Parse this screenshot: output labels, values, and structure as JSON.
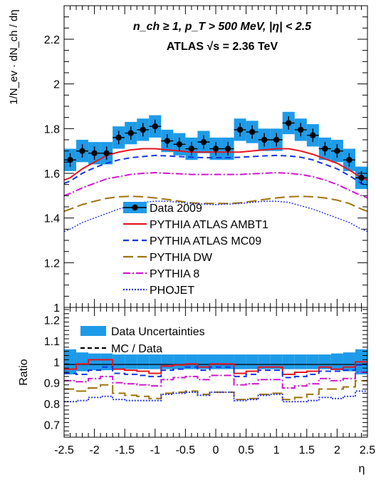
{
  "chart_data": [
    {
      "type": "line",
      "title_line1": "n_ch ≥ 1, p_T > 500 MeV, |η| < 2.5",
      "title_line2": "ATLAS √s = 2.36 TeV",
      "ylabel": "1/N_ev · dN_ch / dη",
      "xlim": [
        -2.5,
        2.5
      ],
      "ylim": [
        1.0,
        2.35
      ],
      "yticks": [
        1.0,
        1.2,
        1.4,
        1.6,
        1.8,
        2.0,
        2.2
      ],
      "yticklabels": [
        "1",
        "1.2",
        "1.4",
        "1.6",
        "1.8",
        "2",
        "2.2"
      ],
      "colors": {
        "data": "#000000",
        "band": "#1e9be8",
        "ambt1": "#e8141e",
        "mc09": "#1432e6",
        "dw": "#a0730a",
        "p8": "#d214d2",
        "phojet": "#2838e0"
      },
      "x": [
        -2.4,
        -2.2,
        -2.0,
        -1.8,
        -1.6,
        -1.4,
        -1.2,
        -1.0,
        -0.8,
        -0.6,
        -0.4,
        -0.2,
        0.0,
        0.2,
        0.4,
        0.6,
        0.8,
        1.0,
        1.2,
        1.4,
        1.6,
        1.8,
        2.0,
        2.2,
        2.4
      ],
      "series": [
        {
          "name": "Data 2009",
          "style": "points-band",
          "values": [
            1.66,
            1.7,
            1.69,
            1.69,
            1.76,
            1.78,
            1.795,
            1.81,
            1.745,
            1.73,
            1.71,
            1.74,
            1.71,
            1.71,
            1.795,
            1.785,
            1.75,
            1.75,
            1.825,
            1.795,
            1.77,
            1.71,
            1.7,
            1.66,
            1.58
          ],
          "band_halfwidth": [
            0.05,
            0.05,
            0.05,
            0.05,
            0.05,
            0.05,
            0.05,
            0.05,
            0.05,
            0.05,
            0.05,
            0.05,
            0.05,
            0.05,
            0.05,
            0.05,
            0.05,
            0.05,
            0.05,
            0.05,
            0.05,
            0.05,
            0.05,
            0.05,
            0.05
          ],
          "errors": [
            0.03,
            0.03,
            0.03,
            0.03,
            0.03,
            0.03,
            0.03,
            0.03,
            0.03,
            0.03,
            0.03,
            0.03,
            0.03,
            0.03,
            0.03,
            0.03,
            0.03,
            0.03,
            0.03,
            0.03,
            0.03,
            0.03,
            0.03,
            0.03,
            0.03
          ]
        },
        {
          "name": "PYTHIA ATLAS AMBT1",
          "color_key": "ambt1",
          "dash": "",
          "values": [
            1.58,
            1.62,
            1.65,
            1.68,
            1.695,
            1.705,
            1.71,
            1.71,
            1.705,
            1.7,
            1.695,
            1.695,
            1.695,
            1.695,
            1.695,
            1.7,
            1.705,
            1.71,
            1.71,
            1.7,
            1.685,
            1.665,
            1.645,
            1.615,
            1.58
          ]
        },
        {
          "name": "PYTHIA ATLAS MC09",
          "color_key": "mc09",
          "dash": "8,5",
          "values": [
            1.565,
            1.6,
            1.625,
            1.645,
            1.66,
            1.67,
            1.675,
            1.68,
            1.678,
            1.675,
            1.672,
            1.67,
            1.67,
            1.67,
            1.672,
            1.675,
            1.678,
            1.68,
            1.678,
            1.672,
            1.66,
            1.64,
            1.62,
            1.59,
            1.555
          ]
        },
        {
          "name": "PYTHIA DW",
          "color_key": "dw",
          "dash": "14,6",
          "values": [
            1.44,
            1.46,
            1.475,
            1.488,
            1.495,
            1.497,
            1.495,
            1.49,
            1.483,
            1.475,
            1.468,
            1.465,
            1.465,
            1.465,
            1.468,
            1.475,
            1.483,
            1.49,
            1.495,
            1.497,
            1.495,
            1.49,
            1.48,
            1.465,
            1.44
          ]
        },
        {
          "name": "PYTHIA 8",
          "color_key": "p8",
          "dash": "10,3,2,3",
          "values": [
            1.51,
            1.535,
            1.555,
            1.575,
            1.585,
            1.595,
            1.6,
            1.603,
            1.6,
            1.598,
            1.595,
            1.595,
            1.595,
            1.595,
            1.595,
            1.598,
            1.6,
            1.603,
            1.6,
            1.595,
            1.585,
            1.57,
            1.55,
            1.525,
            1.5
          ]
        },
        {
          "name": "PHOJET",
          "color_key": "phojet",
          "dash": "2,2",
          "values": [
            1.35,
            1.38,
            1.4,
            1.42,
            1.44,
            1.455,
            1.47,
            1.475,
            1.475,
            1.47,
            1.465,
            1.462,
            1.46,
            1.462,
            1.465,
            1.47,
            1.475,
            1.475,
            1.47,
            1.455,
            1.44,
            1.42,
            1.4,
            1.38,
            1.35
          ]
        }
      ],
      "legend": "center-left"
    },
    {
      "type": "line",
      "ylabel": "Ratio",
      "xlabel": "η",
      "xlim": [
        -2.5,
        2.5
      ],
      "ylim": [
        0.64,
        1.26
      ],
      "xticks": [
        -2.5,
        -2.0,
        -1.5,
        -1.0,
        -0.5,
        0.0,
        0.5,
        1.0,
        1.5,
        2.0,
        2.5
      ],
      "xticklabels": [
        "-2.5",
        "-2",
        "-1.5",
        "-1",
        "-0.5",
        "0",
        "0.5",
        "1",
        "1.5",
        "2",
        "2.5"
      ],
      "yticks": [
        0.7,
        0.8,
        0.9,
        1.0,
        1.1,
        1.2
      ],
      "yticklabels": [
        "0.7",
        "0.8",
        "0.9",
        "1",
        "1.1",
        "1.2"
      ],
      "legend_entries": [
        {
          "label": "Data Uncertainties",
          "style": "band"
        },
        {
          "label": "MC / Data",
          "style": "dash"
        }
      ],
      "band_halfwidth": [
        0.06,
        0.045,
        0.04,
        0.04,
        0.035,
        0.035,
        0.035,
        0.035,
        0.035,
        0.035,
        0.035,
        0.035,
        0.035,
        0.035,
        0.035,
        0.035,
        0.035,
        0.035,
        0.035,
        0.035,
        0.035,
        0.035,
        0.04,
        0.045,
        0.06
      ],
      "series": [
        {
          "name": "PYTHIA ATLAS AMBT1",
          "color_key": "ambt1",
          "values": [
            0.965,
            0.99,
            1.01,
            1.01,
            0.965,
            0.96,
            0.955,
            0.945,
            0.98,
            0.985,
            0.99,
            0.975,
            0.99,
            0.99,
            0.945,
            0.955,
            0.975,
            0.975,
            0.94,
            0.95,
            0.955,
            0.975,
            0.965,
            0.975,
            1.0
          ]
        },
        {
          "name": "PYTHIA ATLAS MC09",
          "color_key": "mc09",
          "values": [
            0.945,
            0.94,
            0.96,
            0.975,
            0.945,
            0.94,
            0.935,
            0.93,
            0.96,
            0.965,
            0.975,
            0.96,
            0.975,
            0.975,
            0.93,
            0.94,
            0.96,
            0.96,
            0.925,
            0.93,
            0.94,
            0.955,
            0.955,
            0.96,
            0.985
          ]
        },
        {
          "name": "PYTHIA 8",
          "color_key": "p8",
          "values": [
            0.91,
            0.905,
            0.92,
            0.93,
            0.9,
            0.895,
            0.89,
            0.885,
            0.915,
            0.925,
            0.93,
            0.915,
            0.935,
            0.935,
            0.89,
            0.895,
            0.915,
            0.915,
            0.875,
            0.885,
            0.895,
            0.92,
            0.91,
            0.92,
            0.95
          ]
        },
        {
          "name": "PYTHIA DW",
          "color_key": "dw",
          "values": [
            0.87,
            0.86,
            0.875,
            0.89,
            0.85,
            0.84,
            0.835,
            0.825,
            0.85,
            0.855,
            0.86,
            0.845,
            0.855,
            0.855,
            0.82,
            0.825,
            0.845,
            0.85,
            0.82,
            0.83,
            0.845,
            0.87,
            0.87,
            0.88,
            0.91
          ]
        },
        {
          "name": "PHOJET",
          "color_key": "phojet",
          "values": [
            0.81,
            0.815,
            0.83,
            0.835,
            0.82,
            0.815,
            0.815,
            0.815,
            0.845,
            0.85,
            0.855,
            0.84,
            0.855,
            0.855,
            0.815,
            0.82,
            0.84,
            0.845,
            0.81,
            0.81,
            0.815,
            0.83,
            0.825,
            0.835,
            0.86
          ]
        }
      ]
    }
  ]
}
